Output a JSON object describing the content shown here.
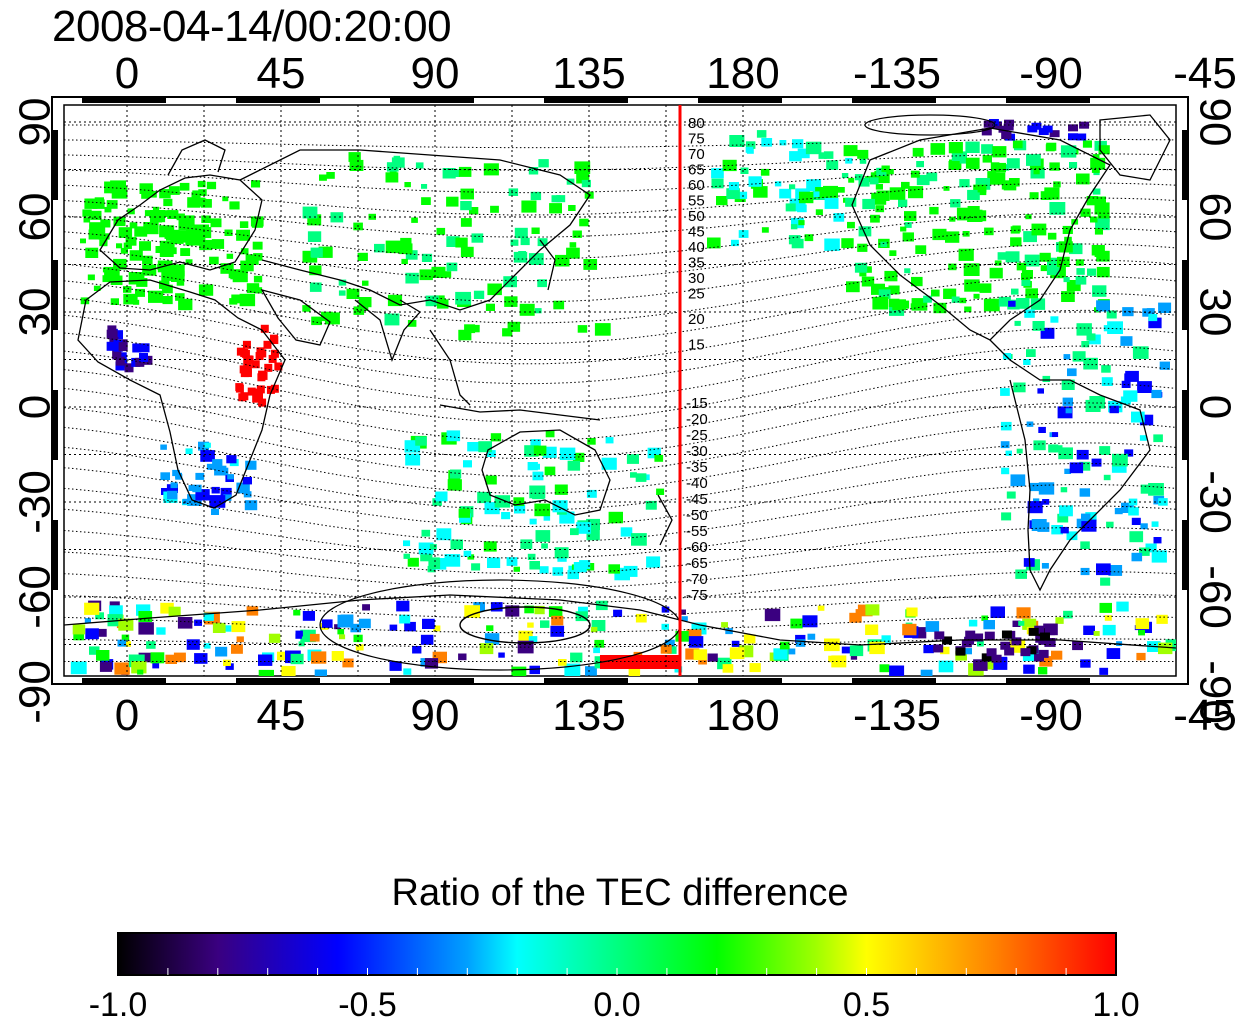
{
  "title": "2008-04-14/00:20:00",
  "longitude_ticks": [
    "0",
    "45",
    "90",
    "135",
    "180",
    "-135",
    "-90",
    "-45"
  ],
  "latitude_ticks": [
    "90",
    "60",
    "30",
    "0",
    "-30",
    "-60",
    "-90"
  ],
  "contour_labels_north": [
    "80",
    "75",
    "70",
    "65",
    "60",
    "55",
    "50",
    "45",
    "40",
    "35",
    "30",
    "25",
    "20",
    "15"
  ],
  "contour_labels_south": [
    "-15",
    "-20",
    "-25",
    "-30",
    "-35",
    "-40",
    "-45",
    "-50",
    "-55",
    "-60",
    "-65",
    "-70",
    "-75"
  ],
  "colorbar": {
    "title": "Ratio of the TEC difference",
    "labels": [
      "-1.0",
      "-0.5",
      "0.0",
      "0.5",
      "1.0"
    ],
    "min": -1.0,
    "max": 1.0,
    "colors": [
      "#000000",
      "#3a0080",
      "#0000ff",
      "#00a0ff",
      "#00ffff",
      "#00ff80",
      "#00ff00",
      "#a0ff00",
      "#ffff00",
      "#ff8000",
      "#ff0000"
    ]
  },
  "map": {
    "projection": "cylindrical, centered at 180",
    "terminator_longitude": 175,
    "terminator_color": "#ff0000",
    "grid": "dotted"
  }
}
